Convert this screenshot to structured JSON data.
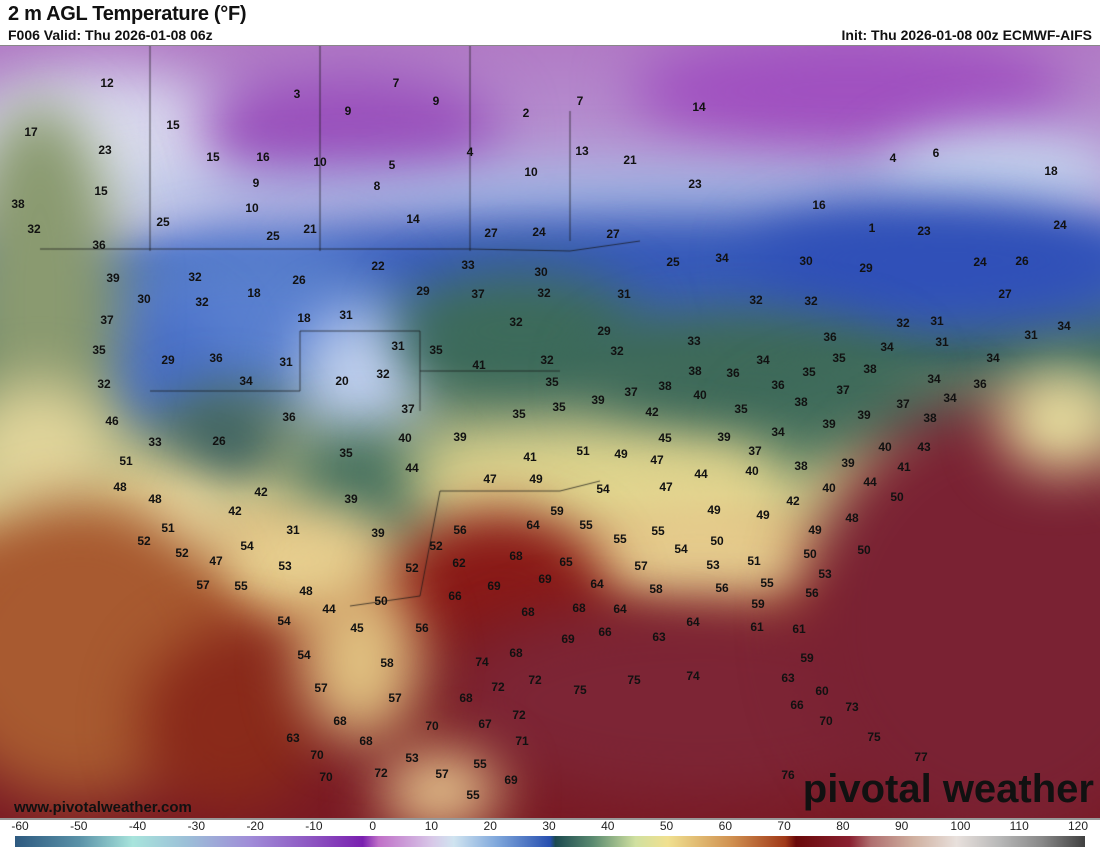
{
  "header": {
    "title": "2 m AGL Temperature (°F)",
    "valid": "F006 Valid: Thu 2026-01-08 06z",
    "init": "Init: Thu 2026-01-08 00z ECMWF-AIFS"
  },
  "footer": {
    "url": "www.pivotalweather.com",
    "logo": "pivotal weather"
  },
  "colorbar": {
    "unit": "°F",
    "ticks": [
      "-60",
      "-50",
      "-40",
      "-30",
      "-20",
      "-10",
      "0",
      "10",
      "20",
      "30",
      "40",
      "50",
      "60",
      "70",
      "80",
      "90",
      "100",
      "110",
      "120"
    ],
    "colors": {
      "cold": "#2e5a80",
      "freezing": "#2850b0",
      "mild": "#f0e090",
      "warm": "#6a0a0a",
      "hot": "#404040"
    }
  },
  "temperatures": [
    12,
    3,
    7,
    9,
    7,
    14,
    2,
    9,
    17,
    15,
    23,
    15,
    16,
    10,
    5,
    4,
    13,
    21,
    4,
    6,
    18,
    15,
    9,
    8,
    10,
    23,
    16,
    38,
    10,
    14,
    25,
    32,
    25,
    21,
    27,
    24,
    27,
    1,
    23,
    24,
    36,
    39,
    25,
    34,
    30,
    29,
    24,
    26,
    33,
    22,
    30,
    26,
    32,
    30,
    32,
    18,
    29,
    37,
    32,
    31,
    32,
    32,
    27,
    37,
    18,
    31,
    32,
    29,
    32,
    31,
    31,
    34,
    35,
    29,
    36,
    31,
    31,
    35,
    32,
    32,
    33,
    36,
    34,
    31,
    34,
    32,
    34,
    20,
    32,
    41,
    35,
    37,
    38,
    38,
    36,
    34,
    35,
    35,
    38,
    36,
    37,
    34,
    36,
    46,
    36,
    37,
    35,
    35,
    39,
    42,
    40,
    35,
    38,
    37,
    34,
    38,
    33,
    26,
    40,
    39,
    45,
    39,
    34,
    39,
    39,
    51,
    35,
    51,
    41,
    49,
    47,
    37,
    40,
    43,
    48,
    44,
    47,
    49,
    44,
    40,
    38,
    39,
    41,
    48,
    42,
    39,
    54,
    47,
    40,
    44,
    50,
    42,
    59,
    49,
    49,
    42,
    48,
    51,
    31,
    39,
    56,
    64,
    55,
    55,
    49,
    52,
    54,
    52,
    55,
    54,
    50,
    50,
    50,
    52,
    47,
    53,
    52,
    62,
    68,
    65,
    57,
    51,
    53,
    53,
    57,
    55,
    48,
    50,
    66,
    69,
    69,
    64,
    58,
    56,
    55,
    56,
    44,
    54,
    68,
    68,
    64,
    59,
    45,
    56,
    64,
    61,
    61,
    63,
    66,
    69,
    54,
    58,
    74,
    68,
    59,
    57,
    57,
    68,
    72,
    72,
    75,
    75,
    74,
    63,
    60,
    68,
    70,
    67,
    72,
    66,
    73,
    70,
    63,
    70,
    68,
    71,
    75,
    70,
    72,
    53,
    57,
    55,
    69,
    77,
    76,
    55
  ]
}
